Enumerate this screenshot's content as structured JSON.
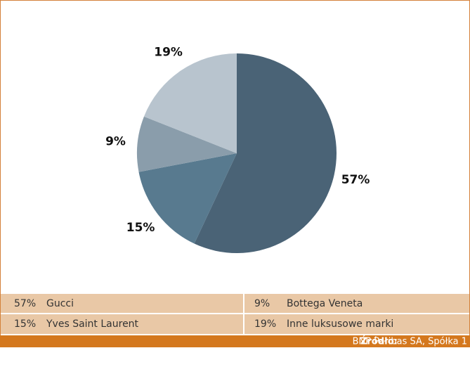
{
  "chart_data": {
    "type": "pie",
    "categories": [
      "Gucci",
      "Yves Saint Laurent",
      "Bottega Veneta",
      "Inne luksusowe marki"
    ],
    "values": [
      57,
      15,
      9,
      19
    ],
    "value_labels": [
      "57%",
      "15%",
      "9%",
      "19%"
    ],
    "colors": [
      "#4a6376",
      "#587a8f",
      "#8a9dab",
      "#b8c4ce"
    ],
    "source_label": "Źródło:",
    "source": "BNP Paribas SA, Spółka 1"
  }
}
